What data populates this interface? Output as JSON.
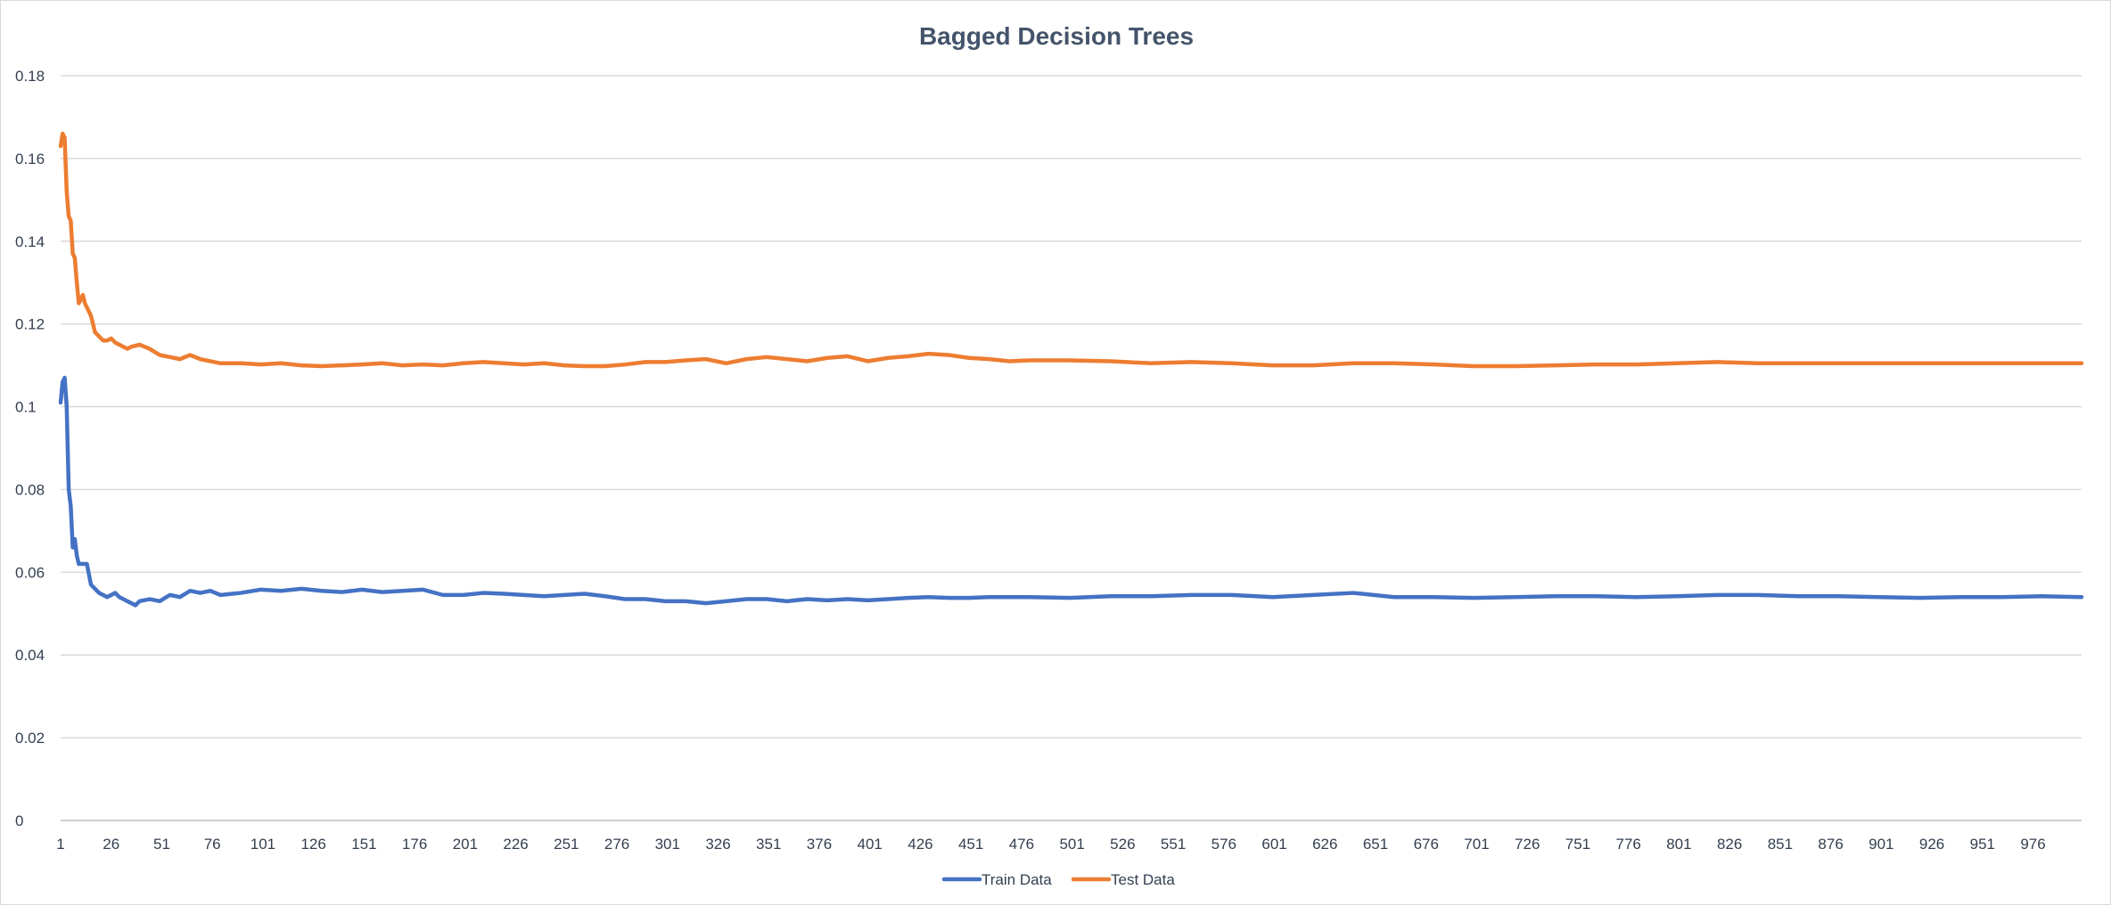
{
  "chart_data": {
    "type": "line",
    "title": "Bagged Decision Trees",
    "xlabel": "",
    "ylabel": "",
    "xlim": [
      1,
      1000
    ],
    "ylim": [
      0,
      0.18
    ],
    "y_ticks": [
      0,
      0.02,
      0.04,
      0.06,
      0.08,
      0.1,
      0.12,
      0.14,
      0.16,
      0.18
    ],
    "y_tick_labels": [
      "0",
      "0.02",
      "0.04",
      "0.06",
      "0.08",
      "0.1",
      "0.12",
      "0.14",
      "0.16",
      "0.18"
    ],
    "x_ticks": [
      1,
      26,
      51,
      76,
      101,
      126,
      151,
      176,
      201,
      226,
      251,
      276,
      301,
      326,
      351,
      376,
      401,
      426,
      451,
      476,
      501,
      526,
      551,
      576,
      601,
      626,
      651,
      676,
      701,
      726,
      751,
      776,
      801,
      826,
      851,
      876,
      901,
      926,
      951,
      976
    ],
    "x_tick_labels": [
      "1",
      "26",
      "51",
      "76",
      "101",
      "126",
      "151",
      "176",
      "201",
      "226",
      "251",
      "276",
      "301",
      "326",
      "351",
      "376",
      "401",
      "426",
      "451",
      "476",
      "501",
      "526",
      "551",
      "576",
      "601",
      "626",
      "651",
      "676",
      "701",
      "726",
      "751",
      "776",
      "801",
      "826",
      "851",
      "876",
      "901",
      "926",
      "951",
      "976"
    ],
    "grid": true,
    "legend_position": "bottom",
    "series": [
      {
        "name": "Train Data",
        "color": "#4472c4",
        "points": [
          [
            1,
            0.101
          ],
          [
            2,
            0.106
          ],
          [
            3,
            0.107
          ],
          [
            4,
            0.1
          ],
          [
            5,
            0.08
          ],
          [
            6,
            0.076
          ],
          [
            7,
            0.066
          ],
          [
            8,
            0.068
          ],
          [
            9,
            0.064
          ],
          [
            10,
            0.062
          ],
          [
            12,
            0.062
          ],
          [
            14,
            0.062
          ],
          [
            16,
            0.057
          ],
          [
            18,
            0.056
          ],
          [
            20,
            0.055
          ],
          [
            22,
            0.0545
          ],
          [
            24,
            0.054
          ],
          [
            26,
            0.0545
          ],
          [
            28,
            0.055
          ],
          [
            30,
            0.054
          ],
          [
            32,
            0.0535
          ],
          [
            34,
            0.053
          ],
          [
            36,
            0.0525
          ],
          [
            38,
            0.052
          ],
          [
            40,
            0.053
          ],
          [
            45,
            0.0535
          ],
          [
            50,
            0.053
          ],
          [
            55,
            0.0545
          ],
          [
            60,
            0.054
          ],
          [
            65,
            0.0555
          ],
          [
            70,
            0.055
          ],
          [
            75,
            0.0555
          ],
          [
            80,
            0.0545
          ],
          [
            90,
            0.055
          ],
          [
            100,
            0.0558
          ],
          [
            110,
            0.0555
          ],
          [
            120,
            0.056
          ],
          [
            130,
            0.0555
          ],
          [
            140,
            0.0552
          ],
          [
            150,
            0.0558
          ],
          [
            160,
            0.0552
          ],
          [
            170,
            0.0555
          ],
          [
            180,
            0.0558
          ],
          [
            190,
            0.0545
          ],
          [
            200,
            0.0545
          ],
          [
            210,
            0.055
          ],
          [
            220,
            0.0548
          ],
          [
            230,
            0.0545
          ],
          [
            240,
            0.0542
          ],
          [
            250,
            0.0545
          ],
          [
            260,
            0.0548
          ],
          [
            270,
            0.0542
          ],
          [
            280,
            0.0535
          ],
          [
            290,
            0.0535
          ],
          [
            300,
            0.053
          ],
          [
            310,
            0.053
          ],
          [
            320,
            0.0525
          ],
          [
            330,
            0.053
          ],
          [
            340,
            0.0535
          ],
          [
            350,
            0.0535
          ],
          [
            360,
            0.053
          ],
          [
            370,
            0.0535
          ],
          [
            380,
            0.0532
          ],
          [
            390,
            0.0535
          ],
          [
            400,
            0.0532
          ],
          [
            410,
            0.0535
          ],
          [
            420,
            0.0538
          ],
          [
            430,
            0.054
          ],
          [
            440,
            0.0538
          ],
          [
            450,
            0.0538
          ],
          [
            460,
            0.054
          ],
          [
            480,
            0.054
          ],
          [
            500,
            0.0538
          ],
          [
            520,
            0.0542
          ],
          [
            540,
            0.0542
          ],
          [
            560,
            0.0545
          ],
          [
            580,
            0.0545
          ],
          [
            600,
            0.054
          ],
          [
            620,
            0.0545
          ],
          [
            640,
            0.055
          ],
          [
            650,
            0.0545
          ],
          [
            660,
            0.054
          ],
          [
            680,
            0.054
          ],
          [
            700,
            0.0538
          ],
          [
            720,
            0.054
          ],
          [
            740,
            0.0542
          ],
          [
            760,
            0.0542
          ],
          [
            780,
            0.054
          ],
          [
            800,
            0.0542
          ],
          [
            820,
            0.0545
          ],
          [
            840,
            0.0545
          ],
          [
            860,
            0.0542
          ],
          [
            880,
            0.0542
          ],
          [
            900,
            0.054
          ],
          [
            920,
            0.0538
          ],
          [
            940,
            0.054
          ],
          [
            960,
            0.054
          ],
          [
            980,
            0.0542
          ],
          [
            1000,
            0.054
          ]
        ]
      },
      {
        "name": "Test Data",
        "color": "#ed7d31",
        "points": [
          [
            1,
            0.163
          ],
          [
            2,
            0.166
          ],
          [
            3,
            0.165
          ],
          [
            4,
            0.152
          ],
          [
            5,
            0.146
          ],
          [
            6,
            0.145
          ],
          [
            7,
            0.137
          ],
          [
            8,
            0.136
          ],
          [
            9,
            0.13
          ],
          [
            10,
            0.125
          ],
          [
            11,
            0.126
          ],
          [
            12,
            0.127
          ],
          [
            13,
            0.125
          ],
          [
            14,
            0.124
          ],
          [
            16,
            0.122
          ],
          [
            18,
            0.118
          ],
          [
            20,
            0.117
          ],
          [
            22,
            0.116
          ],
          [
            24,
            0.116
          ],
          [
            26,
            0.1165
          ],
          [
            28,
            0.1155
          ],
          [
            30,
            0.115
          ],
          [
            32,
            0.1145
          ],
          [
            34,
            0.114
          ],
          [
            36,
            0.1145
          ],
          [
            40,
            0.115
          ],
          [
            45,
            0.114
          ],
          [
            50,
            0.1125
          ],
          [
            55,
            0.112
          ],
          [
            60,
            0.1115
          ],
          [
            65,
            0.1125
          ],
          [
            70,
            0.1115
          ],
          [
            75,
            0.111
          ],
          [
            80,
            0.1105
          ],
          [
            90,
            0.1105
          ],
          [
            100,
            0.1102
          ],
          [
            110,
            0.1105
          ],
          [
            120,
            0.11
          ],
          [
            130,
            0.1098
          ],
          [
            140,
            0.11
          ],
          [
            150,
            0.1102
          ],
          [
            160,
            0.1105
          ],
          [
            170,
            0.11
          ],
          [
            180,
            0.1102
          ],
          [
            190,
            0.11
          ],
          [
            200,
            0.1105
          ],
          [
            210,
            0.1108
          ],
          [
            220,
            0.1105
          ],
          [
            230,
            0.1102
          ],
          [
            240,
            0.1105
          ],
          [
            250,
            0.11
          ],
          [
            260,
            0.1098
          ],
          [
            270,
            0.1098
          ],
          [
            280,
            0.1102
          ],
          [
            290,
            0.1108
          ],
          [
            300,
            0.1108
          ],
          [
            310,
            0.1112
          ],
          [
            320,
            0.1115
          ],
          [
            330,
            0.1105
          ],
          [
            340,
            0.1115
          ],
          [
            350,
            0.112
          ],
          [
            360,
            0.1115
          ],
          [
            370,
            0.111
          ],
          [
            380,
            0.1118
          ],
          [
            390,
            0.1122
          ],
          [
            400,
            0.111
          ],
          [
            410,
            0.1118
          ],
          [
            420,
            0.1122
          ],
          [
            430,
            0.1128
          ],
          [
            440,
            0.1125
          ],
          [
            450,
            0.1118
          ],
          [
            460,
            0.1115
          ],
          [
            470,
            0.111
          ],
          [
            480,
            0.1112
          ],
          [
            500,
            0.1112
          ],
          [
            520,
            0.111
          ],
          [
            540,
            0.1105
          ],
          [
            560,
            0.1108
          ],
          [
            580,
            0.1105
          ],
          [
            600,
            0.11
          ],
          [
            620,
            0.11
          ],
          [
            640,
            0.1105
          ],
          [
            660,
            0.1105
          ],
          [
            680,
            0.1102
          ],
          [
            700,
            0.1098
          ],
          [
            720,
            0.1098
          ],
          [
            740,
            0.11
          ],
          [
            760,
            0.1102
          ],
          [
            780,
            0.1102
          ],
          [
            800,
            0.1105
          ],
          [
            820,
            0.1108
          ],
          [
            840,
            0.1105
          ],
          [
            860,
            0.1105
          ],
          [
            880,
            0.1105
          ],
          [
            900,
            0.1105
          ],
          [
            920,
            0.1105
          ],
          [
            940,
            0.1105
          ],
          [
            960,
            0.1105
          ],
          [
            980,
            0.1105
          ],
          [
            1000,
            0.1105
          ]
        ]
      }
    ]
  }
}
